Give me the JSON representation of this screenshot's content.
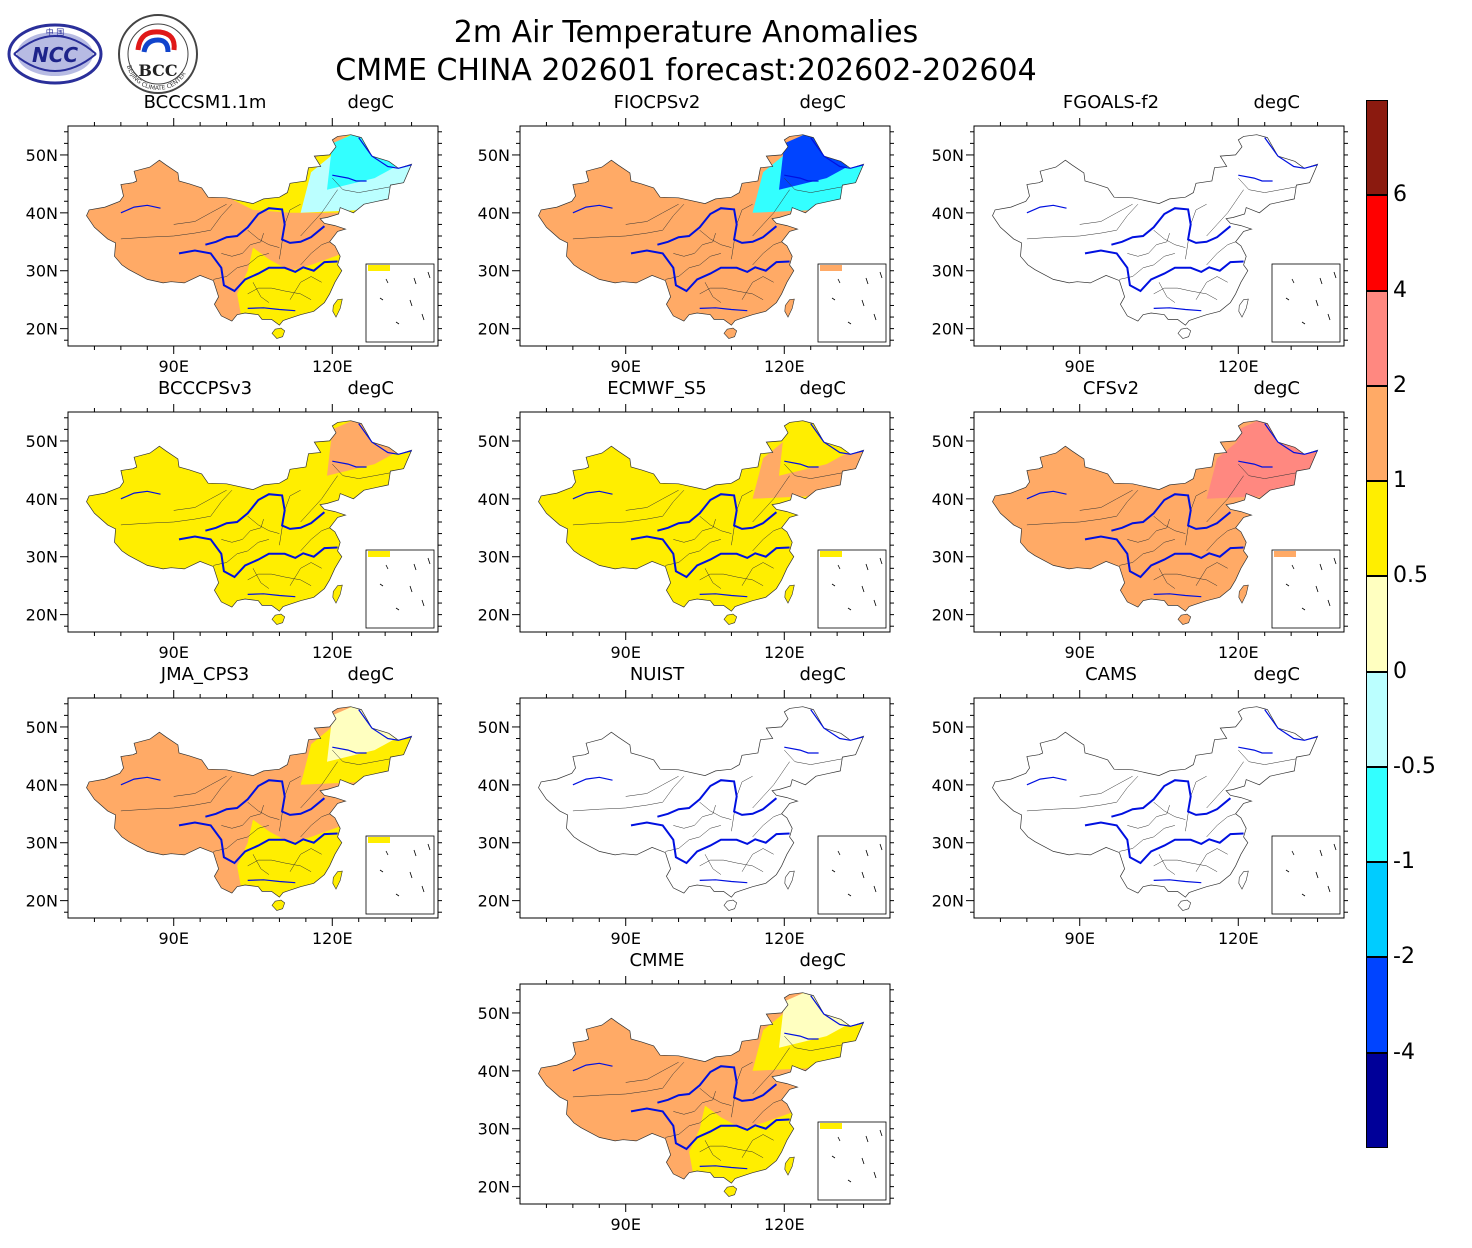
{
  "figure": {
    "title_line1": "2m Air Temperature Anomalies",
    "title_line2": "CMME CHINA 202601 forecast:202602-202604"
  },
  "logos": [
    {
      "name": "NCC",
      "text": "NCC",
      "top_text": "中 国"
    },
    {
      "name": "BCC",
      "text": "BCC",
      "ring_text": "BEIJING CLIMATE CENTER"
    }
  ],
  "colors": {
    "river": "#0010e0",
    "border": "#333333",
    "levels": [
      "#000099",
      "#0044ff",
      "#00ccff",
      "#33ffff",
      "#bbffff",
      "#ffffc0",
      "#ffee00",
      "#ffaa66",
      "#ff8880",
      "#ff0000",
      "#8b1a0f"
    ],
    "bin_indices": {
      "lt_neg2": 1,
      "neg1_neg05": 3,
      "neg05_0": 4,
      "0_05": 5,
      "05_1": 6,
      "1_2": 7,
      "2_4": 8,
      "4_6": 9
    }
  },
  "chart_data": {
    "type": "map_panels",
    "variable": "2m Air Temperature Anomalies",
    "units": "degC",
    "xlim": [
      70,
      140
    ],
    "ylim": [
      17,
      55
    ],
    "x_ticks": [
      "90E",
      "120E"
    ],
    "y_ticks": [
      "50N",
      "40N",
      "30N",
      "20N"
    ],
    "panels": [
      {
        "model": "BCCCSM1.1m",
        "unit": "degC",
        "dominant": "1_2",
        "north": "05_1",
        "northeast": "neg05_0",
        "northeast2": "neg1_neg05",
        "southeast": "05_1",
        "has_data": true
      },
      {
        "model": "FIOCPSv2",
        "unit": "degC",
        "dominant": "1_2",
        "north": "1_2",
        "northeast": "neg1_neg05",
        "northeast2": "lt_neg2",
        "southeast": "1_2",
        "has_data": true
      },
      {
        "model": "FGOALS-f2",
        "unit": "degC",
        "has_data": false
      },
      {
        "model": "BCCCPSv3",
        "unit": "degC",
        "dominant": "05_1",
        "north": "05_1",
        "northeast": "05_1",
        "northeast2": "1_2",
        "southeast": "05_1",
        "has_data": true
      },
      {
        "model": "ECMWF_S5",
        "unit": "degC",
        "dominant": "05_1",
        "north": "05_1",
        "northeast": "1_2",
        "northeast2": "05_1",
        "southeast": "05_1",
        "has_data": true
      },
      {
        "model": "CFSv2",
        "unit": "degC",
        "dominant": "1_2",
        "north": "1_2",
        "northeast": "2_4",
        "northeast2": "2_4",
        "southeast": "1_2",
        "has_data": true
      },
      {
        "model": "JMA_CPS3",
        "unit": "degC",
        "dominant": "1_2",
        "north": "1_2",
        "northeast": "05_1",
        "northeast2": "0_05",
        "southeast": "05_1",
        "has_data": true
      },
      {
        "model": "NUIST",
        "unit": "degC",
        "has_data": false
      },
      {
        "model": "CAMS",
        "unit": "degC",
        "has_data": false
      },
      {
        "model": "CMME",
        "unit": "degC",
        "dominant": "1_2",
        "north": "1_2",
        "northeast": "05_1",
        "northeast2": "0_05",
        "southeast": "05_1",
        "has_data": true
      }
    ],
    "colorbar": {
      "labels": [
        "6",
        "4",
        "2",
        "1",
        "0.5",
        "0",
        "-0.5",
        "-1",
        "-2",
        "-4"
      ],
      "colors_top_to_bottom": [
        "#8b1a0f",
        "#ff0000",
        "#ff8880",
        "#ffaa66",
        "#ffee00",
        "#ffffc0",
        "#bbffff",
        "#33ffff",
        "#00ccff",
        "#0044ff",
        "#000099"
      ]
    }
  }
}
